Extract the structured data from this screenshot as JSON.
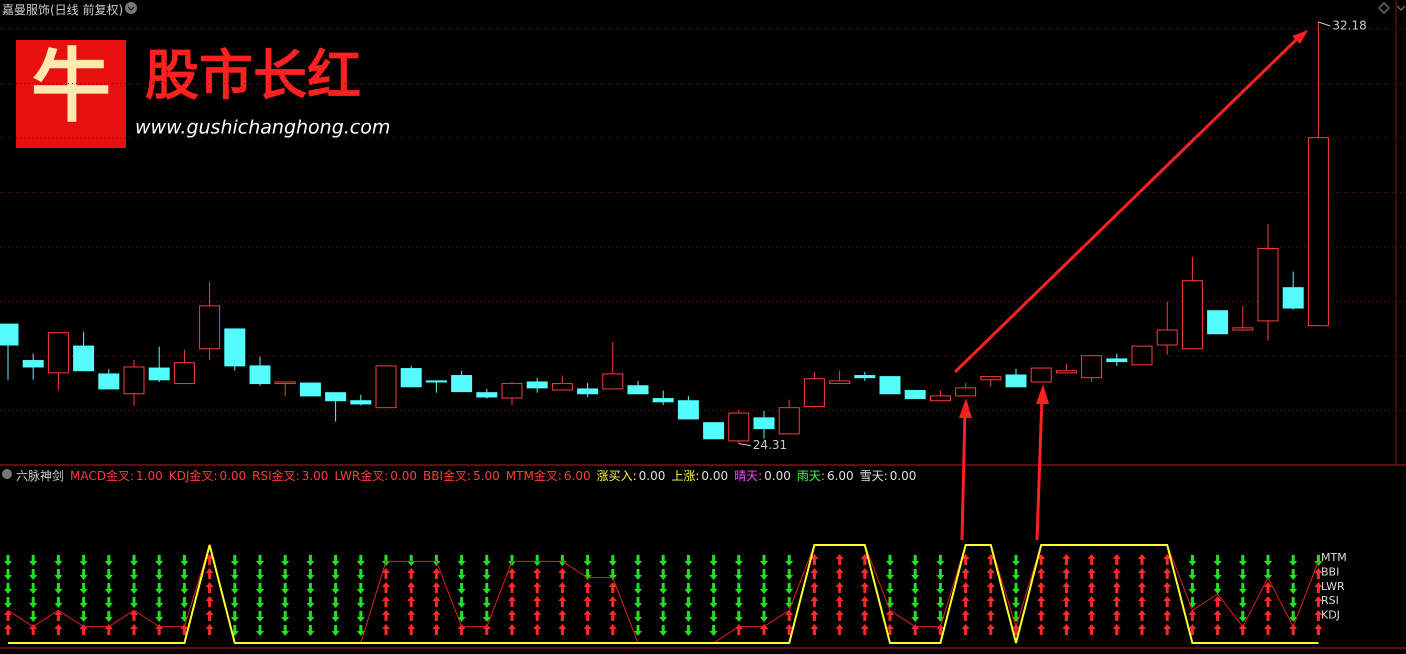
{
  "chart_data": {
    "type": "candlestick",
    "title": "嘉曼服饰(日线 前复权)",
    "ylim": [
      23.91,
      32.59
    ],
    "up_color": "#ff3b3b",
    "down_color": "#54fcfc",
    "open": [
      26.54,
      25.86,
      25.63,
      26.13,
      25.61,
      25.24,
      25.72,
      25.43,
      26.08,
      26.45,
      25.76,
      25.43,
      25.44,
      25.26,
      25.11,
      24.98,
      25.71,
      25.48,
      25.58,
      25.26,
      25.16,
      25.46,
      25.31,
      25.33,
      25.33,
      25.39,
      25.15,
      25.11,
      24.7,
      24.36,
      24.79,
      24.49,
      25.0,
      25.43,
      25.58,
      25.56,
      25.3,
      25.11,
      25.2,
      25.5,
      25.59,
      25.46,
      25.63,
      25.54,
      25.89,
      25.78,
      26.15,
      26.08,
      26.79,
      26.43,
      26.6,
      27.22,
      26.51
    ],
    "high": [
      26.54,
      25.99,
      26.38,
      26.4,
      25.7,
      25.87,
      26.12,
      26.06,
      27.33,
      26.45,
      25.93,
      25.46,
      25.44,
      25.26,
      25.22,
      25.76,
      25.76,
      25.48,
      25.67,
      25.33,
      25.46,
      25.54,
      25.58,
      25.44,
      26.21,
      25.48,
      25.3,
      25.2,
      24.7,
      24.94,
      24.92,
      25.13,
      25.65,
      25.67,
      25.65,
      25.56,
      25.3,
      25.3,
      25.44,
      25.56,
      25.71,
      25.72,
      25.8,
      25.95,
      25.99,
      26.13,
      26.96,
      27.79,
      26.79,
      26.88,
      28.41,
      27.52,
      32.18
    ],
    "low": [
      25.5,
      25.5,
      25.31,
      25.67,
      25.33,
      25.02,
      25.46,
      25.43,
      25.87,
      25.67,
      25.39,
      25.2,
      25.2,
      24.72,
      25.02,
      24.98,
      25.37,
      25.26,
      25.28,
      25.15,
      25.03,
      25.26,
      25.31,
      25.18,
      25.33,
      25.24,
      25.03,
      24.77,
      24.4,
      24.31,
      24.4,
      24.49,
      25.0,
      25.43,
      25.48,
      25.24,
      25.15,
      25.11,
      25.2,
      25.37,
      25.37,
      25.46,
      25.63,
      25.46,
      25.76,
      25.78,
      25.97,
      26.08,
      26.36,
      26.41,
      26.23,
      26.81,
      26.51
    ],
    "close": [
      26.15,
      25.74,
      26.38,
      25.67,
      25.33,
      25.74,
      25.5,
      25.82,
      26.88,
      25.76,
      25.43,
      25.46,
      25.2,
      25.11,
      25.05,
      25.76,
      25.37,
      25.46,
      25.28,
      25.18,
      25.43,
      25.35,
      25.43,
      25.24,
      25.61,
      25.24,
      25.09,
      24.77,
      24.4,
      24.88,
      24.59,
      24.98,
      25.52,
      25.48,
      25.54,
      25.24,
      25.15,
      25.2,
      25.35,
      25.56,
      25.37,
      25.72,
      25.67,
      25.95,
      25.84,
      26.13,
      26.43,
      27.35,
      26.36,
      26.47,
      27.95,
      26.84,
      30.02
    ],
    "indicator": {
      "title": "六脉神剑",
      "items": [
        {
          "name": "MACD金叉:",
          "value": 1,
          "value_label": "1.00",
          "color": "#ff3b3b"
        },
        {
          "name": "KDJ金叉:",
          "value": 0,
          "value_label": "0.00",
          "color": "#ff3b3b"
        },
        {
          "name": "RSI金叉:",
          "value": 3,
          "value_label": "3.00",
          "color": "#ff3b3b"
        },
        {
          "name": "LWR金叉:",
          "value": 0,
          "value_label": "0.00",
          "color": "#ff3b3b"
        },
        {
          "name": "BBI金叉:",
          "value": 5,
          "value_label": "5.00",
          "color": "#ff3b3b"
        },
        {
          "name": "MTM金叉:",
          "value": 6,
          "value_label": "6.00",
          "color": "#ff3b3b"
        },
        {
          "name": "涨买入:",
          "value": 0,
          "value_label": "0.00",
          "color": "#ffff3c"
        },
        {
          "name": "上涨:",
          "value": 0,
          "value_label": "0.00",
          "color": "#ffff3c"
        },
        {
          "name": "晴天:",
          "value": 0,
          "value_label": "0.00",
          "color": "#ff44ff"
        },
        {
          "name": "雨天:",
          "value": 6,
          "value_label": "6.00",
          "color": "#3cff3c"
        },
        {
          "name": "雪天:",
          "value": 0,
          "value_label": "0.00",
          "color": "#e0e0e0"
        }
      ],
      "row_labels": [
        "MTM",
        "BBI",
        "LWR",
        "RSI",
        "KDJ"
      ],
      "ylim": [
        0,
        6
      ],
      "signal_count": [
        2,
        1,
        2,
        1,
        1,
        2,
        1,
        1,
        6,
        0,
        0,
        0,
        0,
        0,
        0,
        5,
        5,
        5,
        1,
        1,
        5,
        5,
        5,
        4,
        4,
        0,
        0,
        0,
        0,
        1,
        1,
        2,
        6,
        6,
        6,
        2,
        1,
        1,
        6,
        6,
        1,
        6,
        6,
        6,
        6,
        6,
        6,
        2,
        3,
        1,
        4,
        1,
        5
      ]
    }
  },
  "watermark": {
    "logo": "牛",
    "brand": "股市长红",
    "url": "www.gushichanghong.com"
  }
}
